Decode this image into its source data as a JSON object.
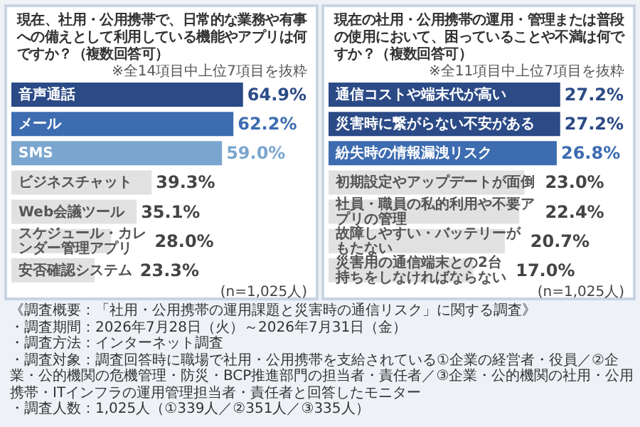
{
  "chart_data": [
    {
      "type": "bar",
      "orientation": "horizontal",
      "title": "現在、社用・公用携帯で、日常的な業務や有事への備えとして利用している機能やアプリは何ですか？（複数回答可）",
      "subtitle": "※全14項目中上位7項目を抜粋",
      "categories": [
        "音声通話",
        "メール",
        "SMS",
        "ビジネスチャット",
        "Web会議ツール",
        "スケジュール・カレンダー管理アプリ",
        "安否確認システム"
      ],
      "values": [
        64.9,
        62.2,
        59.0,
        39.3,
        35.1,
        28.0,
        23.3
      ],
      "value_labels": [
        "64.9%",
        "62.2%",
        "59.0%",
        "39.3%",
        "35.1%",
        "28.0%",
        "23.3%"
      ],
      "colors": [
        "#2b4a86",
        "#3d6cb0",
        "#7aa6cf",
        "#e1e1e1",
        "#e1e1e1",
        "#e1e1e1",
        "#e1e1e1"
      ],
      "annotations": [
        "(n=1,025人)"
      ]
    },
    {
      "type": "bar",
      "orientation": "horizontal",
      "title": "現在の社用・公用携帯の運用・管理または普段の使用において、困っていることや不満は何ですか？（複数回答可）",
      "subtitle": "※全11項目中上位7項目を抜粋",
      "categories": [
        "通信コストや端末代が高い",
        "災害時に繋がらない不安がある",
        "紛失時の情報漏洩リスク",
        "初期設定やアップデートが面倒",
        "社員・職員の私的利用や不要アプリの管理",
        "故障しやすい・バッテリーがもたない",
        "災害用の通信端末との2台持ちをしなければならない"
      ],
      "values": [
        27.2,
        27.2,
        26.8,
        23.0,
        22.4,
        20.7,
        17.0
      ],
      "value_labels": [
        "27.2%",
        "27.2%",
        "26.8%",
        "23.0%",
        "22.4%",
        "20.7%",
        "17.0%"
      ],
      "colors": [
        "#2b4a86",
        "#2b4a86",
        "#3d6cb0",
        "#e1e1e1",
        "#e1e1e1",
        "#e1e1e1",
        "#e1e1e1"
      ],
      "annotations": [
        "(n=1,025人)"
      ]
    },
    {
      "type": "other",
      "annotations": [
        "《調査概要：「社用・公用携帯の運用課題と災害時の通信リスク」に関する調査》",
        "・調査期間：2026年7月28日（火）～2026年7月31日（金）",
        "・調査方法：インターネット調査",
        "・調査対象：調査回答時に職場で社用・公用携帯を支給されている①企業の経営者・役員／②企業・公的機関の危機管理・防災・BCP推進部門の担当者・責任者／③企業・公的機関の社用・公用携帯・ITインフラの運用管理担当者・責任者と回答したモニター",
        "・調査人数：1,025人（①339人／②351人／③335人）"
      ]
    }
  ]
}
